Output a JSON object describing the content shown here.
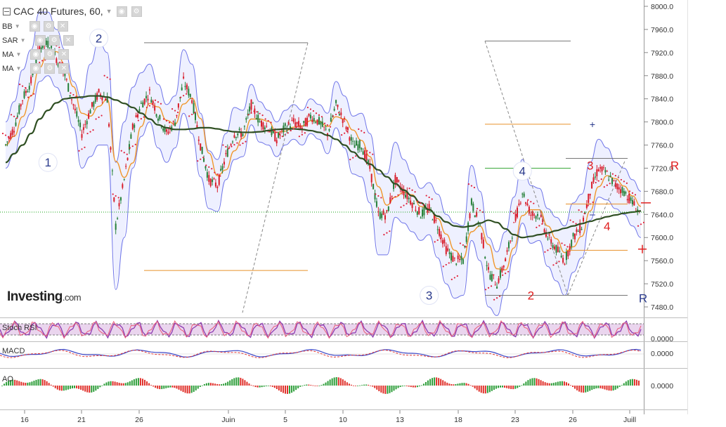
{
  "header": {
    "title": "CAC 40 Futures, 60,"
  },
  "indicators": [
    {
      "label": "BB"
    },
    {
      "label": "SAR"
    },
    {
      "label": "MA"
    },
    {
      "label": "MA"
    }
  ],
  "icons": {
    "minimize": "collapse-icon",
    "settings": "gear-icon",
    "eye": "eye-icon",
    "close": "close-icon",
    "dropdown": "chevron-down-icon"
  },
  "logo": {
    "text": "Investing",
    "suffix": ".com"
  },
  "colors": {
    "bb": "#6e74e8",
    "bb_fill": "#eef0ff",
    "sar": "#e0203a",
    "ma_slow": "#2f4f22",
    "ma_fast": "#f0962a",
    "bull": "#27803a",
    "bear": "#d81d2a",
    "price_line": "#1aa51a",
    "stoch_band": "#d9b2e0",
    "macd": "#3d48c8",
    "signal": "#e23b3b",
    "elliott_blue": "#2a3a8c",
    "elliott_red": "#e01e1e"
  },
  "chart_data": {
    "type": "candlestick",
    "title": "CAC 40 Futures, 60,",
    "ylim": [
      7460,
      8010
    ],
    "y_ticks": [
      "8000.0",
      "7960.0",
      "7920.0",
      "7880.0",
      "7840.0",
      "7800.0",
      "7760.0",
      "7720.0",
      "7680.0",
      "7640.0",
      "7600.0",
      "7560.0",
      "7520.0",
      "7480.0"
    ],
    "x_ticks": [
      "16",
      "21",
      "26",
      "Juin",
      "5",
      "10",
      "13",
      "18",
      "23",
      "26",
      "Juill"
    ],
    "current_price": 7644,
    "price_path": [
      7760,
      7790,
      7840,
      7870,
      7930,
      7935,
      7910,
      7880,
      7830,
      7780,
      7820,
      7850,
      7840,
      7620,
      7700,
      7790,
      7830,
      7850,
      7810,
      7780,
      7800,
      7870,
      7840,
      7760,
      7700,
      7690,
      7740,
      7780,
      7780,
      7830,
      7800,
      7790,
      7770,
      7790,
      7800,
      7790,
      7810,
      7800,
      7780,
      7830,
      7800,
      7760,
      7760,
      7720,
      7640,
      7640,
      7700,
      7680,
      7660,
      7640,
      7650,
      7620,
      7580,
      7560,
      7560,
      7660,
      7620,
      7540,
      7520,
      7560,
      7620,
      7680,
      7640,
      7640,
      7600,
      7580,
      7560,
      7600,
      7620,
      7680,
      7720,
      7710,
      7690,
      7680,
      7660,
      7640
    ],
    "bb_width": [
      40,
      45,
      50,
      55,
      60,
      55,
      50,
      45,
      40,
      60,
      80,
      90,
      80,
      110,
      100,
      70,
      55,
      50,
      55,
      50,
      45,
      55,
      60,
      55,
      50,
      45,
      40,
      45,
      40,
      35,
      35,
      30,
      30,
      30,
      30,
      30,
      30,
      30,
      35,
      40,
      45,
      50,
      55,
      60,
      70,
      70,
      65,
      55,
      50,
      45,
      45,
      55,
      60,
      65,
      60,
      65,
      60,
      60,
      55,
      50,
      50,
      55,
      50,
      45,
      50,
      55,
      60,
      60,
      55,
      50,
      50,
      45,
      40,
      40,
      40,
      40
    ],
    "ma_slow": [
      7730,
      7745,
      7760,
      7780,
      7805,
      7820,
      7833,
      7840,
      7842,
      7843,
      7845,
      7845,
      7843,
      7838,
      7832,
      7825,
      7815,
      7805,
      7795,
      7790,
      7787,
      7787,
      7788,
      7790,
      7790,
      7788,
      7785,
      7783,
      7782,
      7782,
      7783,
      7785,
      7787,
      7788,
      7788,
      7787,
      7785,
      7782,
      7777,
      7770,
      7760,
      7748,
      7737,
      7727,
      7717,
      7705,
      7693,
      7682,
      7672,
      7660,
      7648,
      7637,
      7627,
      7620,
      7618,
      7620,
      7625,
      7630,
      7626,
      7615,
      7605,
      7600,
      7602,
      7605,
      7608,
      7612,
      7616,
      7620,
      7624,
      7628,
      7632,
      7636,
      7639,
      7642,
      7644,
      7646
    ],
    "stoch_rsi": {
      "name": "Stoch RSI",
      "upper": 80,
      "lower": 20
    },
    "macd": {
      "name": "MACD",
      "zero_label": "0.0000"
    },
    "ao": {
      "name": "AO",
      "zero_label": "0.0000"
    },
    "stoch_zero_label": "0.0000",
    "elliott_labels": [
      {
        "text": "1",
        "x_index": 5,
        "y": 7730,
        "color": "blue"
      },
      {
        "text": "2",
        "x_index": 11,
        "y": 7945,
        "color": "blue"
      },
      {
        "text": "3",
        "x_index": 50,
        "y": 7500,
        "color": "blue"
      },
      {
        "text": "4",
        "x_index": 61,
        "y": 7715,
        "color": "blue"
      },
      {
        "text": "2",
        "x_index": 62,
        "y": 7500,
        "color": "red"
      },
      {
        "text": "3",
        "x_index": 69,
        "y": 7725,
        "color": "red"
      },
      {
        "text": "4",
        "x_index": 71,
        "y": 7620,
        "color": "red"
      },
      {
        "text": "R",
        "x_index": 73,
        "y": 7495,
        "color": "blue"
      },
      {
        "text": "R",
        "x_index": 77,
        "y": 7725,
        "color": "red"
      }
    ]
  }
}
